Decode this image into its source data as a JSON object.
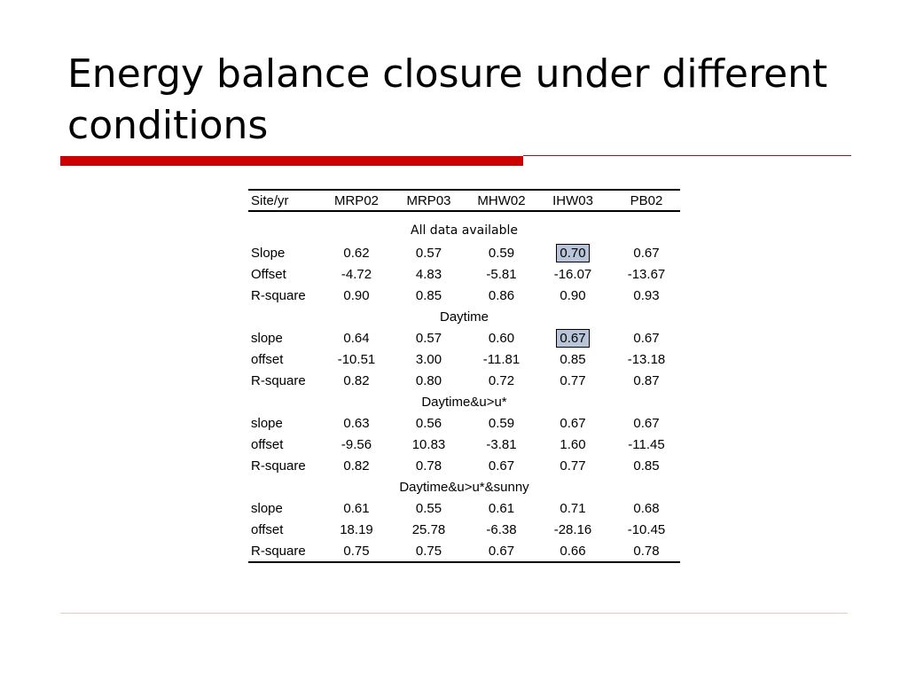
{
  "title": "Energy balance closure under different conditions",
  "colors": {
    "accent_rule": "#cc0000",
    "highlight_fill": "#b8c4d8",
    "footer_rule": "#f0c9b8"
  },
  "table": {
    "headers": [
      "Site/yr",
      "MRP02",
      "MRP03",
      "MHW02",
      "IHW03",
      "PB02"
    ],
    "sections": [
      {
        "label": "All data available",
        "rows": [
          {
            "label": "Slope",
            "values": [
              "0.62",
              "0.57",
              "0.59",
              "0.70",
              "0.67"
            ]
          },
          {
            "label": "Offset",
            "values": [
              "-4.72",
              "4.83",
              "-5.81",
              "-16.07",
              "-13.67"
            ]
          },
          {
            "label": "R-square",
            "values": [
              "0.90",
              "0.85",
              "0.86",
              "0.90",
              "0.93"
            ]
          }
        ]
      },
      {
        "label": "Daytime",
        "rows": [
          {
            "label": "slope",
            "values": [
              "0.64",
              "0.57",
              "0.60",
              "0.67",
              "0.67"
            ]
          },
          {
            "label": "offset",
            "values": [
              "-10.51",
              "3.00",
              "-11.81",
              "0.85",
              "-13.18"
            ]
          },
          {
            "label": "R-square",
            "values": [
              "0.82",
              "0.80",
              "0.72",
              "0.77",
              "0.87"
            ]
          }
        ]
      },
      {
        "label": "Daytime&u>u*",
        "rows": [
          {
            "label": "slope",
            "values": [
              "0.63",
              "0.56",
              "0.59",
              "0.67",
              "0.67"
            ]
          },
          {
            "label": "offset",
            "values": [
              "-9.56",
              "10.83",
              "-3.81",
              "1.60",
              "-11.45"
            ]
          },
          {
            "label": "R-square",
            "values": [
              "0.82",
              "0.78",
              "0.67",
              "0.77",
              "0.85"
            ]
          }
        ]
      },
      {
        "label": "Daytime&u>u*&sunny",
        "rows": [
          {
            "label": "slope",
            "values": [
              "0.61",
              "0.55",
              "0.61",
              "0.71",
              "0.68"
            ]
          },
          {
            "label": "offset",
            "values": [
              "18.19",
              "25.78",
              "-6.38",
              "-28.16",
              "-10.45"
            ]
          },
          {
            "label": "R-square",
            "values": [
              "0.75",
              "0.75",
              "0.67",
              "0.66",
              "0.78"
            ]
          }
        ]
      }
    ]
  }
}
